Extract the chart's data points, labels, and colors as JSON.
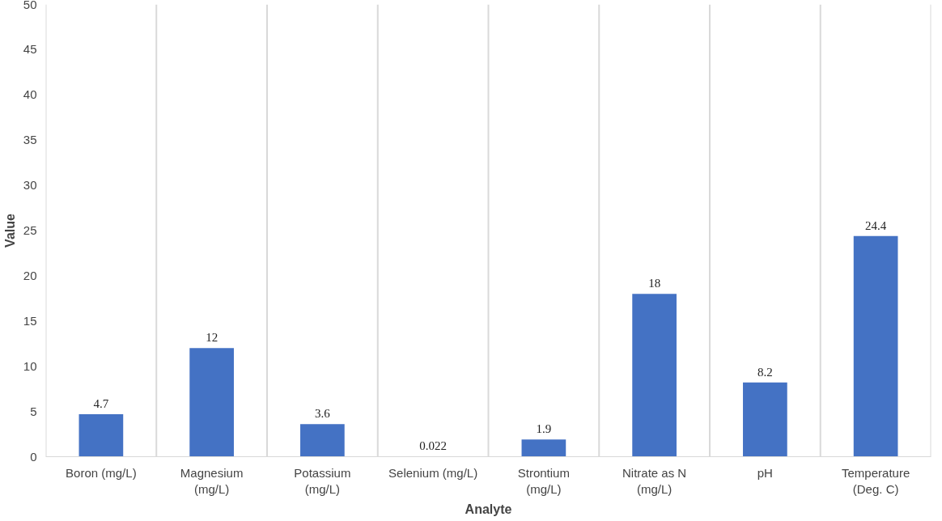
{
  "chart_data": {
    "type": "bar",
    "xlabel": "Analyte",
    "ylabel": "Value",
    "categories": [
      "Boron (mg/L)",
      "Magnesium (mg/L)",
      "Potassium (mg/L)",
      "Selenium (mg/L)",
      "Strontium (mg/L)",
      "Nitrate as N (mg/L)",
      "pH",
      "Temperature (Deg. C)"
    ],
    "values": [
      4.7,
      12,
      3.6,
      0.022,
      1.9,
      18,
      8.2,
      24.4
    ],
    "color": "#4472c4",
    "ylim": [
      0,
      50
    ],
    "yticks": [
      0,
      5,
      10,
      15,
      20,
      25,
      30,
      35,
      40,
      45,
      50
    ],
    "grid": "x",
    "data_labels": true
  }
}
